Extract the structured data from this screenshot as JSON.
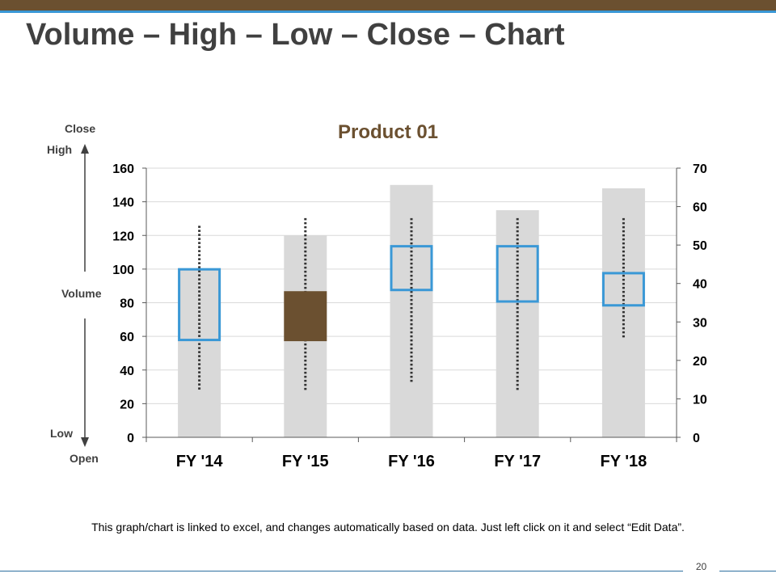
{
  "slide": {
    "title": "Volume – High – Low – Close – Chart",
    "note": "This graph/chart is linked to excel, and changes automatically based on data. Just left click on it and select “Edit Data”.",
    "page_number": "20"
  },
  "colors": {
    "brand": "#6b5030",
    "accent": "#3a98d6",
    "volume_bar": "#d9d9d9",
    "title_text": "#404040",
    "chart_title": "#6b5030"
  },
  "legend_guide": {
    "close": "Close",
    "high": "High",
    "volume": "Volume",
    "low": "Low",
    "open": "Open"
  },
  "chart_data": {
    "type": "bar",
    "title": "Product 01",
    "categories": [
      "FY '14",
      "FY '15",
      "FY '16",
      "FY '17",
      "FY '18"
    ],
    "volume": [
      100,
      120,
      150,
      135,
      148
    ],
    "high": [
      55,
      57,
      57,
      57,
      57
    ],
    "low": [
      12,
      12,
      14,
      12,
      26
    ],
    "open": [
      25,
      38,
      38,
      35,
      34
    ],
    "close": [
      44,
      25,
      50,
      50,
      43
    ],
    "y_left": {
      "min": 0,
      "max": 160,
      "ticks": [
        0,
        20,
        40,
        60,
        80,
        100,
        120,
        140,
        160
      ]
    },
    "y_right": {
      "min": 0,
      "max": 70,
      "ticks": [
        0,
        10,
        20,
        30,
        40,
        50,
        60,
        70
      ]
    },
    "grid": true
  }
}
